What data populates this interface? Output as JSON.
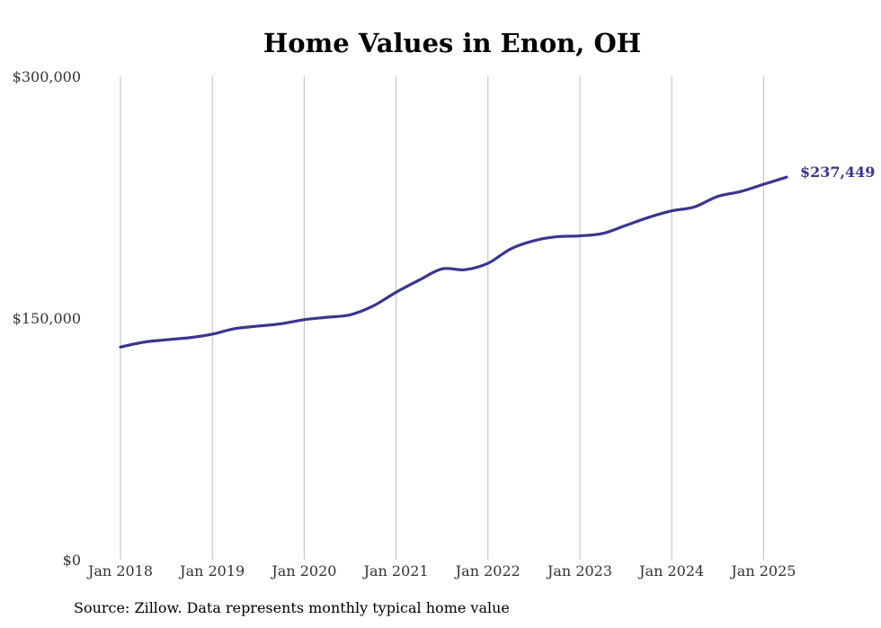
{
  "title": "Home Values in Enon, OH",
  "source_note": "Source: Zillow. Data represents monthly typical home value",
  "colors": {
    "line": "#3b3590",
    "gridline": "#bdbdbd",
    "text": "#333333"
  },
  "chart_data": {
    "type": "line",
    "title": "Home Values in Enon, OH",
    "xlabel": "",
    "ylabel": "",
    "ylim": [
      0,
      300000
    ],
    "y_ticks": [
      0,
      150000,
      300000
    ],
    "y_tick_labels": [
      "$0",
      "$150,000",
      "$300,000"
    ],
    "x_ticks": [
      "2018-01",
      "2019-01",
      "2020-01",
      "2021-01",
      "2022-01",
      "2023-01",
      "2024-01",
      "2025-01"
    ],
    "x_tick_labels": [
      "Jan 2018",
      "Jan 2019",
      "Jan 2020",
      "Jan 2021",
      "Jan 2022",
      "Jan 2023",
      "Jan 2024",
      "Jan 2025"
    ],
    "grid": "vertical",
    "end_label": "$237,449",
    "series": [
      {
        "x": [
          "2018-01",
          "2018-04",
          "2018-07",
          "2018-10",
          "2019-01",
          "2019-04",
          "2019-07",
          "2019-10",
          "2020-01",
          "2020-04",
          "2020-07",
          "2020-10",
          "2021-01",
          "2021-04",
          "2021-07",
          "2021-10",
          "2022-01",
          "2022-04",
          "2022-07",
          "2022-10",
          "2023-01",
          "2023-04",
          "2023-07",
          "2023-10",
          "2024-01",
          "2024-04",
          "2024-07",
          "2024-10",
          "2025-01",
          "2025-04"
        ],
        "values": [
          132000,
          135000,
          136500,
          137800,
          140000,
          143500,
          145000,
          146500,
          149000,
          150500,
          152000,
          157500,
          166000,
          173500,
          180500,
          180000,
          184000,
          193000,
          198000,
          200500,
          201000,
          202500,
          207500,
          212500,
          216500,
          219000,
          225500,
          228500,
          233000,
          237449
        ]
      }
    ]
  }
}
